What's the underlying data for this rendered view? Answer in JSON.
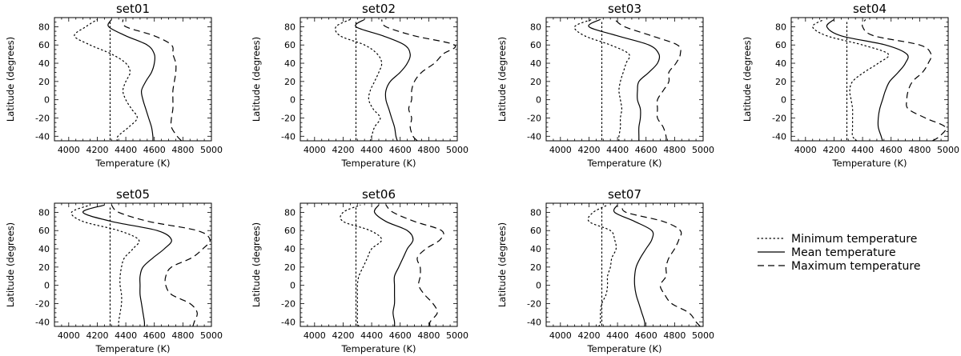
{
  "chart_data": {
    "type": "line",
    "shared": {
      "xlabel": "Temperature (K)",
      "ylabel": "Latitude (degrees)",
      "xlim": [
        3900,
        5000
      ],
      "ylim": [
        -45,
        90
      ],
      "xticks": [
        4000,
        4200,
        4400,
        4600,
        4800,
        5000
      ],
      "yticks": [
        -40,
        -20,
        0,
        20,
        40,
        60,
        80
      ],
      "reference_line_x": 4290,
      "latitudes": [
        -45,
        -40,
        -30,
        -20,
        -10,
        0,
        10,
        20,
        30,
        40,
        50,
        60,
        70,
        80,
        88
      ]
    },
    "legend": {
      "placement": "right",
      "entries": [
        {
          "name": "Minimum temperature",
          "style": "dotted"
        },
        {
          "name": "Mean temperature",
          "style": "solid"
        },
        {
          "name": "Maximum temperature",
          "style": "dashed"
        }
      ]
    },
    "panels": [
      {
        "title": "set01",
        "min": [
          4340,
          4345,
          4420,
          4480,
          4440,
          4400,
          4380,
          4400,
          4430,
          4400,
          4300,
          4150,
          4040,
          4120,
          4200
        ],
        "mean": [
          4590,
          4590,
          4580,
          4560,
          4540,
          4520,
          4510,
          4540,
          4580,
          4600,
          4600,
          4550,
          4400,
          4280,
          4300
        ],
        "max": [
          4790,
          4760,
          4720,
          4720,
          4730,
          4730,
          4730,
          4740,
          4750,
          4750,
          4730,
          4720,
          4600,
          4400,
          4380
        ]
      },
      {
        "title": "set02",
        "min": [
          4390,
          4400,
          4420,
          4460,
          4410,
          4380,
          4390,
          4420,
          4450,
          4470,
          4440,
          4350,
          4180,
          4150,
          4250
        ],
        "mean": [
          4580,
          4570,
          4560,
          4540,
          4520,
          4500,
          4500,
          4530,
          4600,
          4650,
          4670,
          4630,
          4480,
          4290,
          4350
        ],
        "max": [
          4720,
          4690,
          4670,
          4680,
          4660,
          4680,
          4680,
          4700,
          4750,
          4840,
          4900,
          4980,
          4700,
          4500,
          4470
        ]
      },
      {
        "title": "set03",
        "min": [
          4410,
          4410,
          4420,
          4420,
          4430,
          4420,
          4410,
          4420,
          4440,
          4460,
          4480,
          4350,
          4170,
          4100,
          4220
        ],
        "mean": [
          4550,
          4550,
          4550,
          4560,
          4560,
          4540,
          4540,
          4550,
          4620,
          4680,
          4690,
          4620,
          4400,
          4200,
          4280
        ],
        "max": [
          4740,
          4740,
          4720,
          4680,
          4680,
          4680,
          4720,
          4760,
          4760,
          4810,
          4840,
          4820,
          4640,
          4450,
          4380
        ]
      },
      {
        "title": "set04",
        "min": [
          4360,
          4330,
          4330,
          4330,
          4330,
          4320,
          4310,
          4330,
          4410,
          4510,
          4580,
          4400,
          4150,
          4050,
          4130
        ],
        "mean": [
          4540,
          4530,
          4510,
          4510,
          4520,
          4540,
          4560,
          4590,
          4650,
          4700,
          4710,
          4560,
          4250,
          4150,
          4200
        ],
        "max": [
          4890,
          4940,
          4980,
          4840,
          4720,
          4710,
          4720,
          4750,
          4820,
          4860,
          4880,
          4800,
          4480,
          4400,
          4420
        ]
      },
      {
        "title": "set05",
        "min": [
          4350,
          4350,
          4360,
          4370,
          4370,
          4360,
          4360,
          4370,
          4390,
          4450,
          4490,
          4350,
          4100,
          4020,
          4150
        ],
        "mean": [
          4530,
          4530,
          4520,
          4510,
          4500,
          4500,
          4500,
          4520,
          4590,
          4670,
          4720,
          4620,
          4300,
          4100,
          4250
        ],
        "max": [
          4870,
          4880,
          4900,
          4850,
          4720,
          4680,
          4680,
          4720,
          4860,
          4940,
          4990,
          4900,
          4560,
          4350,
          4300
        ]
      },
      {
        "title": "set06",
        "min": [
          4310,
          4300,
          4300,
          4300,
          4300,
          4300,
          4310,
          4340,
          4370,
          4400,
          4470,
          4390,
          4200,
          4200,
          4320
        ],
        "mean": [
          4560,
          4560,
          4550,
          4560,
          4560,
          4560,
          4560,
          4590,
          4620,
          4650,
          4690,
          4650,
          4500,
          4420,
          4450
        ],
        "max": [
          4810,
          4810,
          4860,
          4830,
          4770,
          4730,
          4740,
          4740,
          4720,
          4780,
          4880,
          4890,
          4700,
          4550,
          4500
        ]
      },
      {
        "title": "set07",
        "min": [
          4270,
          4280,
          4280,
          4290,
          4320,
          4330,
          4330,
          4350,
          4360,
          4390,
          4380,
          4350,
          4200,
          4230,
          4330
        ],
        "mean": [
          4590,
          4590,
          4570,
          4550,
          4530,
          4520,
          4520,
          4530,
          4560,
          4600,
          4640,
          4640,
          4520,
          4380,
          4400
        ],
        "max": [
          4980,
          4950,
          4900,
          4780,
          4730,
          4700,
          4740,
          4740,
          4760,
          4800,
          4830,
          4840,
          4720,
          4460,
          4440
        ]
      }
    ]
  }
}
